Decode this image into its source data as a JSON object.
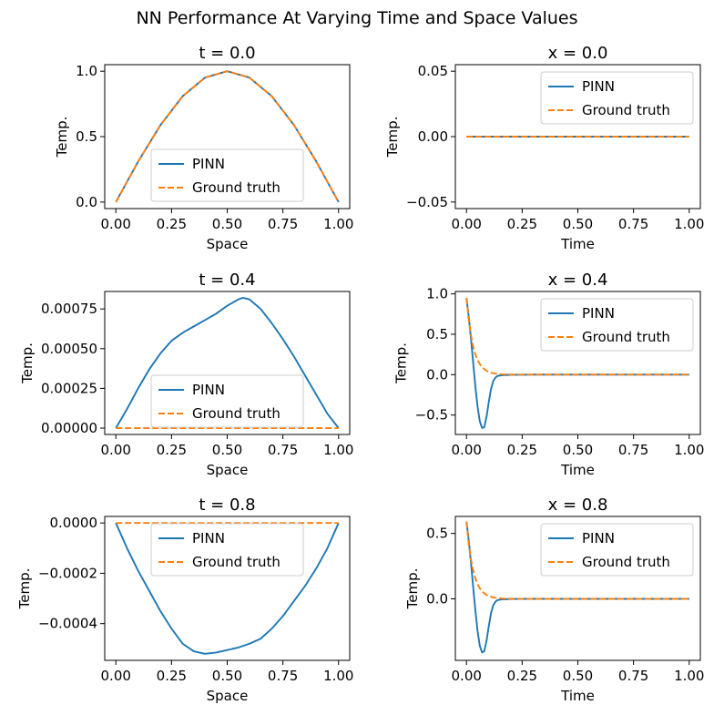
{
  "figure": {
    "suptitle": "NN Performance At Varying Time and Space Values"
  },
  "colors": {
    "pinn": "#1f77b4",
    "ground_truth": "#ff7f0e",
    "axes": "#000000",
    "background": "#ffffff"
  },
  "chart_data": [
    {
      "type": "line",
      "title": "t = 0.0",
      "xlabel": "Space",
      "ylabel": "Temp.",
      "xlim": [
        -0.05,
        1.05
      ],
      "ylim": [
        -0.05,
        1.05
      ],
      "xticks": [
        0,
        0.25,
        0.5,
        0.75,
        1.0
      ],
      "xtick_labels": [
        "0.00",
        "0.25",
        "0.50",
        "0.75",
        "1.00"
      ],
      "yticks": [
        0,
        0.5,
        1.0
      ],
      "ytick_labels": [
        "0.0",
        "0.5",
        "1.0"
      ],
      "legend": "lower-center",
      "grid": false,
      "x": [
        0,
        0.1,
        0.2,
        0.3,
        0.4,
        0.5,
        0.6,
        0.7,
        0.8,
        0.9,
        1.0
      ],
      "series": [
        {
          "name": "PINN",
          "style": "solid",
          "values": [
            0,
            0.309,
            0.588,
            0.809,
            0.951,
            1.0,
            0.951,
            0.809,
            0.588,
            0.309,
            0
          ]
        },
        {
          "name": "Ground truth",
          "style": "dashed",
          "values": [
            0,
            0.309,
            0.588,
            0.809,
            0.951,
            1.0,
            0.951,
            0.809,
            0.588,
            0.309,
            0
          ]
        }
      ]
    },
    {
      "type": "line",
      "title": "x = 0.0",
      "xlabel": "Time",
      "ylabel": "Temp.",
      "xlim": [
        -0.05,
        1.05
      ],
      "ylim": [
        -0.055,
        0.055
      ],
      "xticks": [
        0,
        0.25,
        0.5,
        0.75,
        1.0
      ],
      "xtick_labels": [
        "0.00",
        "0.25",
        "0.50",
        "0.75",
        "1.00"
      ],
      "yticks": [
        -0.05,
        0,
        0.05
      ],
      "ytick_labels": [
        "−0.05",
        "0.00",
        "0.05"
      ],
      "legend": "upper-right",
      "grid": false,
      "x": [
        0,
        0.25,
        0.5,
        0.75,
        1.0
      ],
      "series": [
        {
          "name": "PINN",
          "style": "solid",
          "values": [
            0,
            0,
            0,
            0,
            0
          ]
        },
        {
          "name": "Ground truth",
          "style": "dashed",
          "values": [
            0,
            0,
            0,
            0,
            0
          ]
        }
      ]
    },
    {
      "type": "line",
      "title": "t = 0.4",
      "xlabel": "Space",
      "ylabel": "Temp.",
      "xlim": [
        -0.05,
        1.05
      ],
      "ylim": [
        -4e-05,
        0.00086
      ],
      "xticks": [
        0,
        0.25,
        0.5,
        0.75,
        1.0
      ],
      "xtick_labels": [
        "0.00",
        "0.25",
        "0.50",
        "0.75",
        "1.00"
      ],
      "yticks": [
        0,
        0.00025,
        0.0005,
        0.00075
      ],
      "ytick_labels": [
        "0.00000",
        "0.00025",
        "0.00050",
        "0.00075"
      ],
      "legend": "lower-center",
      "grid": false,
      "x": [
        0,
        0.05,
        0.1,
        0.15,
        0.2,
        0.25,
        0.3,
        0.35,
        0.4,
        0.45,
        0.5,
        0.55,
        0.57,
        0.6,
        0.65,
        0.7,
        0.75,
        0.8,
        0.85,
        0.9,
        0.95,
        1.0
      ],
      "series": [
        {
          "name": "PINN",
          "style": "solid",
          "values": [
            0,
            0.00012,
            0.00025,
            0.00037,
            0.00047,
            0.00055,
            0.0006,
            0.00064,
            0.00068,
            0.00072,
            0.00077,
            0.00081,
            0.00082,
            0.00081,
            0.00075,
            0.00066,
            0.00056,
            0.00045,
            0.00033,
            0.00021,
            9e-05,
            0
          ]
        },
        {
          "name": "Ground truth",
          "style": "dashed",
          "values": [
            0,
            0,
            0,
            0,
            0,
            0,
            0,
            0,
            0,
            0,
            0,
            0,
            0,
            0,
            0,
            0,
            0,
            0,
            0,
            0,
            0,
            0
          ]
        }
      ]
    },
    {
      "type": "line",
      "title": "x = 0.4",
      "xlabel": "Time",
      "ylabel": "Temp.",
      "xlim": [
        -0.05,
        1.05
      ],
      "ylim": [
        -0.74,
        1.03
      ],
      "xticks": [
        0,
        0.25,
        0.5,
        0.75,
        1.0
      ],
      "xtick_labels": [
        "0.00",
        "0.25",
        "0.50",
        "0.75",
        "1.00"
      ],
      "yticks": [
        -0.5,
        0,
        0.5,
        1.0
      ],
      "ytick_labels": [
        "−0.5",
        "0.0",
        "0.5",
        "1.0"
      ],
      "legend": "upper-right",
      "grid": false,
      "x": [
        0,
        0.01,
        0.02,
        0.03,
        0.04,
        0.05,
        0.06,
        0.07,
        0.08,
        0.09,
        0.1,
        0.11,
        0.12,
        0.13,
        0.14,
        0.16,
        0.18,
        0.2,
        0.25,
        0.3,
        0.4,
        0.5,
        0.75,
        1.0
      ],
      "series": [
        {
          "name": "PINN",
          "style": "solid",
          "values": [
            0.95,
            0.72,
            0.45,
            0.15,
            -0.15,
            -0.4,
            -0.58,
            -0.66,
            -0.65,
            -0.52,
            -0.34,
            -0.18,
            -0.08,
            -0.035,
            -0.015,
            -0.006,
            -0.003,
            -0.002,
            -0.001,
            0,
            0,
            0,
            0,
            0
          ]
        },
        {
          "name": "Ground truth",
          "style": "dashed",
          "values": [
            0.95,
            0.68,
            0.49,
            0.35,
            0.25,
            0.18,
            0.13,
            0.095,
            0.068,
            0.049,
            0.035,
            0.025,
            0.018,
            0.013,
            0.0095,
            0.005,
            0.0025,
            0.0013,
            0.0002,
            0,
            0,
            0,
            0,
            0
          ]
        }
      ]
    },
    {
      "type": "line",
      "title": "t = 0.8",
      "xlabel": "Space",
      "ylabel": "Temp.",
      "xlim": [
        -0.05,
        1.05
      ],
      "ylim": [
        -0.000546,
        2.6e-05
      ],
      "xticks": [
        0,
        0.25,
        0.5,
        0.75,
        1.0
      ],
      "xtick_labels": [
        "0.00",
        "0.25",
        "0.50",
        "0.75",
        "1.00"
      ],
      "yticks": [
        -0.0004,
        -0.0002,
        0
      ],
      "ytick_labels": [
        "−0.0004",
        "−0.0002",
        "0.0000"
      ],
      "legend": "upper-center",
      "grid": false,
      "x": [
        0,
        0.05,
        0.1,
        0.15,
        0.2,
        0.25,
        0.3,
        0.35,
        0.4,
        0.45,
        0.5,
        0.55,
        0.6,
        0.65,
        0.7,
        0.75,
        0.8,
        0.85,
        0.9,
        0.95,
        1.0
      ],
      "series": [
        {
          "name": "PINN",
          "style": "solid",
          "values": [
            0,
            -0.0001,
            -0.00019,
            -0.00027,
            -0.00035,
            -0.00042,
            -0.00048,
            -0.00051,
            -0.00052,
            -0.000515,
            -0.000505,
            -0.000495,
            -0.00048,
            -0.00046,
            -0.00042,
            -0.00037,
            -0.00031,
            -0.00025,
            -0.00018,
            -0.0001,
            0
          ]
        },
        {
          "name": "Ground truth",
          "style": "dashed",
          "values": [
            0,
            0,
            0,
            0,
            0,
            0,
            0,
            0,
            0,
            0,
            0,
            0,
            0,
            0,
            0,
            0,
            0,
            0,
            0,
            0,
            0
          ]
        }
      ]
    },
    {
      "type": "line",
      "title": "x = 0.8",
      "xlabel": "Time",
      "ylabel": "Temp.",
      "xlim": [
        -0.05,
        1.05
      ],
      "ylim": [
        -0.47,
        0.63
      ],
      "xticks": [
        0,
        0.25,
        0.5,
        0.75,
        1.0
      ],
      "xtick_labels": [
        "0.00",
        "0.25",
        "0.50",
        "0.75",
        "1.00"
      ],
      "yticks": [
        0,
        0.5
      ],
      "ytick_labels": [
        "0.0",
        "0.5"
      ],
      "legend": "upper-right",
      "grid": false,
      "x": [
        0,
        0.01,
        0.02,
        0.03,
        0.04,
        0.05,
        0.06,
        0.07,
        0.08,
        0.09,
        0.1,
        0.11,
        0.12,
        0.13,
        0.14,
        0.16,
        0.18,
        0.2,
        0.25,
        0.3,
        0.4,
        0.5,
        0.75,
        1.0
      ],
      "series": [
        {
          "name": "PINN",
          "style": "solid",
          "values": [
            0.59,
            0.45,
            0.28,
            0.09,
            -0.09,
            -0.25,
            -0.36,
            -0.41,
            -0.4,
            -0.32,
            -0.21,
            -0.11,
            -0.05,
            -0.022,
            -0.009,
            -0.004,
            -0.002,
            -0.001,
            0,
            0,
            0,
            0,
            0,
            0
          ]
        },
        {
          "name": "Ground truth",
          "style": "dashed",
          "values": [
            0.59,
            0.42,
            0.3,
            0.22,
            0.155,
            0.11,
            0.08,
            0.058,
            0.042,
            0.03,
            0.022,
            0.016,
            0.011,
            0.008,
            0.006,
            0.003,
            0.0015,
            0.0008,
            0.0001,
            0,
            0,
            0,
            0,
            0
          ]
        }
      ]
    }
  ]
}
